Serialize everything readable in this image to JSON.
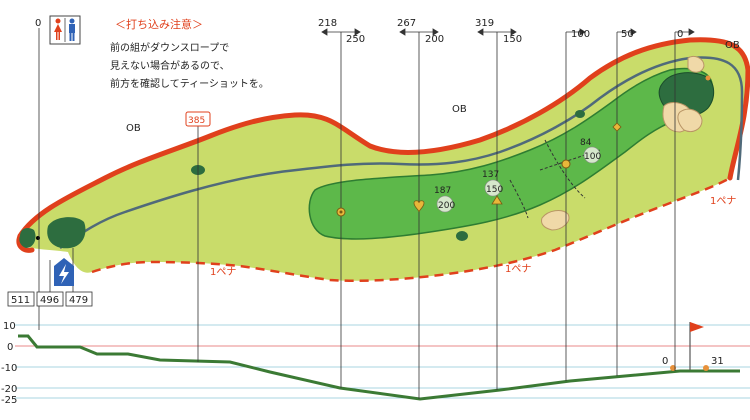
{
  "notice": {
    "title": "＜打ち込み注意＞",
    "lines": [
      "前の組がダウンスロープで",
      "見えない場合があるので、",
      "前方を確認してティーショットを。"
    ]
  },
  "ob_labels": [
    "OB",
    "OB",
    "OB"
  ],
  "penalty_labels": [
    "1ペナ",
    "1ペナ",
    "1ペナ"
  ],
  "yardage_markers": {
    "top_left": [
      "218",
      "267",
      "319"
    ],
    "top_right": [
      "250",
      "200",
      "150",
      "100",
      "50",
      "0"
    ],
    "tee_zero": "0",
    "tee_box": [
      "511",
      "496",
      "479"
    ],
    "distance_flag": "385"
  },
  "green_distances": [
    {
      "top": "187",
      "bottom": "200"
    },
    {
      "top": "137",
      "bottom": "150"
    },
    {
      "top": "84",
      "bottom": "100"
    }
  ],
  "elevation": {
    "ticks": [
      "10",
      "0",
      "-10",
      "-20",
      "-25"
    ],
    "start_label": "0",
    "end_label": "31"
  },
  "colors": {
    "rough": "#c9dc6a",
    "fairway": "#5db84a",
    "fairway_edge": "#2e7d32",
    "green": "#2d6d3f",
    "bunker": "#f0d9a8",
    "ob_line": "#e0401c",
    "path": "#506a7a",
    "profile": "#3b7a34"
  },
  "icons": [
    "restroom-icon",
    "lightning-shelter-icon",
    "pin-flag-icon"
  ]
}
